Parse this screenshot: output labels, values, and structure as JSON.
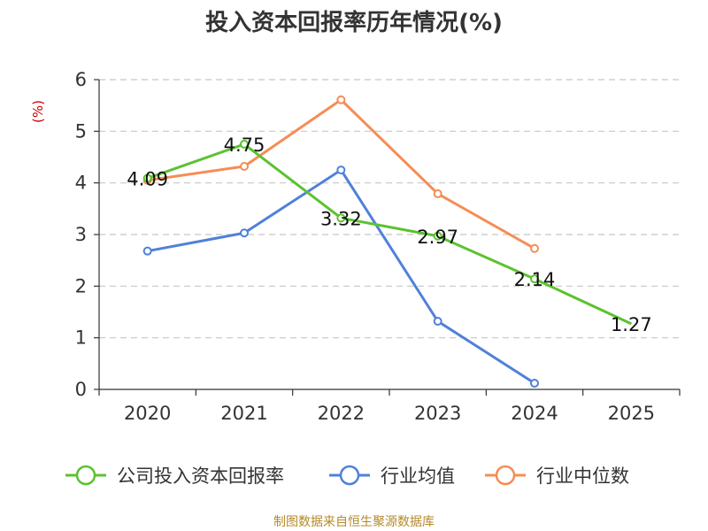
{
  "chart_data": {
    "type": "line",
    "title": "投入资本回报率历年情况(%)",
    "ylabel": "(%)",
    "xlabel": "",
    "categories": [
      "2020",
      "2021",
      "2022",
      "2023",
      "2024",
      "2025"
    ],
    "ylim": [
      0,
      6
    ],
    "yticks": [
      0,
      1,
      2,
      3,
      4,
      5,
      6
    ],
    "grid": true,
    "legend_position": "bottom",
    "series": [
      {
        "name": "公司投入资本回报率",
        "color": "#5cc22f",
        "values": [
          4.09,
          4.75,
          3.32,
          2.97,
          2.14,
          1.27
        ],
        "labels": [
          "4.09",
          "4.75",
          "3.32",
          "2.97",
          "2.14",
          "1.27"
        ]
      },
      {
        "name": "行业均值",
        "color": "#4f81d9",
        "values": [
          2.68,
          3.03,
          4.25,
          1.32,
          0.12,
          null
        ]
      },
      {
        "name": "行业中位数",
        "color": "#f58d55",
        "values": [
          4.05,
          4.32,
          5.61,
          3.79,
          2.73,
          null
        ]
      }
    ]
  },
  "footer": {
    "source": "制图数据来自恒生聚源数据库"
  }
}
